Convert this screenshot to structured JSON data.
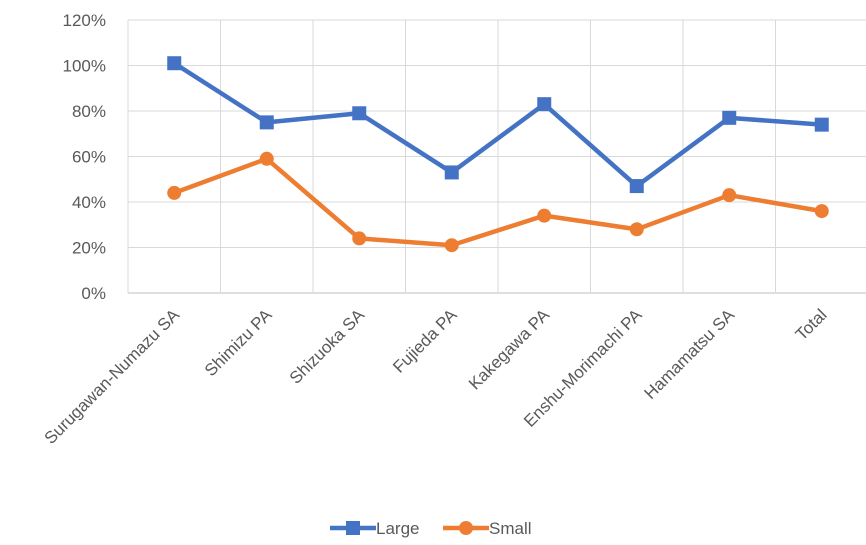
{
  "chart_data": {
    "type": "line",
    "categories": [
      "Surugawan-Numazu SA",
      "Shimizu PA",
      "Shizuoka SA",
      "Fujieda PA",
      "Kakegawa PA",
      "Enshu-Morimachi PA",
      "Hamamatsu SA",
      "Total"
    ],
    "series": [
      {
        "name": "Large",
        "values": [
          101,
          75,
          79,
          53,
          83,
          47,
          77,
          74
        ],
        "color": "#4472c4",
        "marker": "square"
      },
      {
        "name": "Small",
        "values": [
          44,
          59,
          24,
          21,
          34,
          28,
          43,
          36
        ],
        "color": "#ed7d31",
        "marker": "circle"
      }
    ],
    "yticks": [
      "0%",
      "20%",
      "40%",
      "60%",
      "80%",
      "100%",
      "120%"
    ],
    "ylim": [
      0,
      120
    ],
    "grid": true,
    "legend_position": "bottom",
    "title": "",
    "xlabel": "",
    "ylabel": ""
  }
}
